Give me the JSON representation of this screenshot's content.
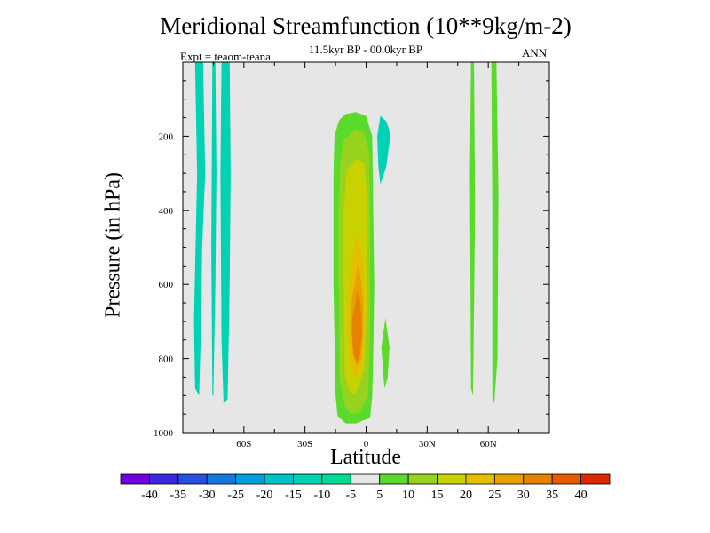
{
  "header": {
    "title": "Meridional Streamfunction (10**9kg/m-2)",
    "subtitle": "11.5kyr BP - 00.0kyr BP",
    "left_label": "Expt = teaom-teana",
    "right_label": "ANN"
  },
  "chart_data": {
    "type": "filled-contour",
    "title": "Meridional Streamfunction (10**9kg/m-2)",
    "xlabel": "Latitude",
    "ylabel": "Pressure (in hPa)",
    "xlim": [
      -90,
      90
    ],
    "ylim": [
      1000,
      0
    ],
    "x_ticks": [
      {
        "value": -60,
        "label": "60S"
      },
      {
        "value": -30,
        "label": "30S"
      },
      {
        "value": 0,
        "label": "0"
      },
      {
        "value": 30,
        "label": "30N"
      },
      {
        "value": 60,
        "label": "60N"
      }
    ],
    "y_ticks": [
      {
        "value": 200,
        "label": "200"
      },
      {
        "value": 400,
        "label": "400"
      },
      {
        "value": 600,
        "label": "600"
      },
      {
        "value": 800,
        "label": "800"
      },
      {
        "value": 1000,
        "label": "1000"
      }
    ],
    "background_color": "#e6e6e6",
    "regions": [
      {
        "name": "negative-band-a",
        "color": "#00d2b4",
        "lat": [
          -84,
          -80,
          -79,
          -80.5,
          -81,
          -82,
          -84,
          -84.5,
          -83
        ],
        "p": [
          0,
          0,
          300,
          500,
          700,
          900,
          880,
          700,
          300
        ]
      },
      {
        "name": "negative-band-b",
        "color": "#00d2b4",
        "lat": [
          -75.5,
          -74,
          -73.5,
          -74,
          -75,
          -75.5,
          -76
        ],
        "p": [
          0,
          0,
          300,
          600,
          900,
          900,
          500
        ]
      },
      {
        "name": "negative-band-c",
        "color": "#00d2b4",
        "lat": [
          -71,
          -67,
          -66.5,
          -67,
          -68,
          -70,
          -71,
          -71.5
        ],
        "p": [
          0,
          0,
          300,
          600,
          910,
          920,
          750,
          300
        ]
      },
      {
        "name": "negative-upper-eq",
        "color": "#00d2b4",
        "lat": [
          5.5,
          7,
          10,
          12,
          10,
          7,
          6
        ],
        "p": [
          200,
          145,
          160,
          195,
          280,
          330,
          280
        ]
      },
      {
        "name": "level-5",
        "color": "#5ada2a",
        "lat": [
          -13,
          -10,
          -5,
          0,
          3,
          3.5,
          4,
          3.5,
          3,
          2,
          -5,
          -10,
          -14,
          -15,
          -16,
          -16,
          -15.5,
          -14
        ],
        "p": [
          155,
          140,
          135,
          145,
          200,
          400,
          600,
          800,
          900,
          960,
          975,
          975,
          955,
          900,
          600,
          300,
          200,
          170
        ]
      },
      {
        "name": "level-5-lower-eq",
        "color": "#5ada2a",
        "lat": [
          7.5,
          9.5,
          11.5,
          10.5,
          9
        ],
        "p": [
          770,
          690,
          770,
          855,
          880
        ]
      },
      {
        "name": "level-5-nh-a",
        "color": "#5ada2a",
        "lat": [
          51.5,
          53,
          53.5,
          52.5,
          51.5,
          51
        ],
        "p": [
          0,
          0,
          400,
          900,
          880,
          300
        ]
      },
      {
        "name": "level-5-nh-b",
        "color": "#5ada2a",
        "lat": [
          61.5,
          64,
          65,
          64.5,
          63,
          62,
          62
        ],
        "p": [
          0,
          0,
          350,
          800,
          920,
          910,
          400
        ]
      },
      {
        "name": "level-10",
        "color": "#96d21e",
        "lat": [
          -11,
          -5,
          -1,
          1.5,
          2,
          2,
          1,
          -3,
          -7,
          -10,
          -13,
          -13.5,
          -13.5,
          -12.5
        ],
        "p": [
          210,
          180,
          190,
          240,
          400,
          700,
          900,
          945,
          950,
          935,
          860,
          600,
          400,
          260
        ]
      },
      {
        "name": "level-15",
        "color": "#c8d200",
        "lat": [
          -9.5,
          -4.5,
          -1,
          0.5,
          0.5,
          -1,
          -5,
          -8,
          -10.5,
          -11,
          -11
        ],
        "p": [
          290,
          260,
          270,
          360,
          650,
          830,
          895,
          890,
          840,
          600,
          400
        ]
      },
      {
        "name": "level-20",
        "color": "#e6be00",
        "lat": [
          -7.5,
          -4.5,
          -1.5,
          -0.5,
          -0.5,
          -2,
          -5,
          -8,
          -9,
          -8.5
        ],
        "p": [
          560,
          455,
          540,
          640,
          740,
          830,
          850,
          820,
          700,
          620
        ]
      },
      {
        "name": "level-25",
        "color": "#e6a000",
        "lat": [
          -5.5,
          -4,
          -2.5,
          -1.5,
          -1.5,
          -2.5,
          -4.5,
          -6.5,
          -7.5,
          -7
        ],
        "p": [
          600,
          545,
          590,
          650,
          720,
          800,
          820,
          790,
          700,
          640
        ]
      },
      {
        "name": "level-30",
        "color": "#e68200",
        "lat": [
          -5.5,
          -4.5,
          -3,
          -2.2,
          -2.2,
          -3,
          -4.5,
          -6,
          -7,
          -6.7
        ],
        "p": [
          660,
          620,
          640,
          690,
          740,
          790,
          810,
          790,
          730,
          690
        ]
      }
    ],
    "colorbar": {
      "colors": [
        "#7000dc",
        "#3c28dc",
        "#2850dc",
        "#1478dc",
        "#00a0dc",
        "#00c3c8",
        "#00d2b4",
        "#00dc96",
        "#e6e6e6",
        "#5ada2a",
        "#96d21e",
        "#c8d200",
        "#e6be00",
        "#e6a000",
        "#e68200",
        "#e65a00",
        "#dc2800"
      ],
      "labels": [
        "-40",
        "-35",
        "-30",
        "-25",
        "-20",
        "-15",
        "-10",
        "-5",
        "5",
        "10",
        "15",
        "20",
        "25",
        "30",
        "35",
        "40"
      ]
    }
  }
}
